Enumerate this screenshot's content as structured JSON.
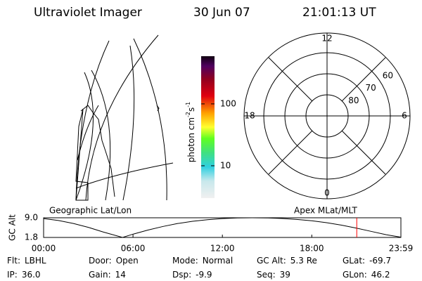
{
  "header": {
    "instrument": "Ultraviolet Imager",
    "date": "30 Jun 07",
    "time": "21:01:13 UT"
  },
  "colorbar": {
    "label": "photon cm",
    "exp1": "-2",
    "unit2": "s",
    "exp2": "-1",
    "log": true,
    "clim": [
      3,
      590
    ],
    "ticks": [
      10,
      100
    ]
  },
  "polar": {
    "lat_rings": [
      80,
      70,
      60
    ],
    "mlt_labels": [
      12,
      18,
      6,
      0
    ]
  },
  "chart_data": {
    "type": "line",
    "left_title": "Geographic Lat/Lon",
    "right_title": "Apex MLat/MLT",
    "ylabel": "GC Alt",
    "x": [
      0,
      1,
      2,
      3,
      4,
      5.3,
      6,
      7,
      8,
      9,
      10,
      11,
      12,
      13,
      14,
      15,
      16,
      17,
      18,
      19,
      20,
      21,
      22,
      23,
      23.983
    ],
    "series": [
      {
        "color": "#000000",
        "values": [
          8.7,
          8.0,
          6.9,
          5.5,
          3.8,
          1.8,
          3.0,
          4.5,
          5.8,
          6.9,
          7.7,
          8.3,
          8.7,
          8.95,
          9.0,
          8.95,
          8.75,
          8.4,
          7.9,
          7.2,
          6.3,
          5.2,
          4.0,
          2.8,
          1.9
        ]
      }
    ],
    "cursor_x": 21.02,
    "cursor_color": "#ff0000",
    "xlim": [
      0,
      23.983
    ],
    "xticks": [
      {
        "value": 0,
        "label": "00:00"
      },
      {
        "value": 6,
        "label": "06:00"
      },
      {
        "value": 12,
        "label": "12:00"
      },
      {
        "value": 18,
        "label": "18:00"
      },
      {
        "value": 23.983,
        "label": "23:59"
      }
    ],
    "ylim": [
      1.8,
      9.0
    ],
    "yticks": [
      {
        "value": 9.0,
        "label": "9.0"
      },
      {
        "value": 1.8,
        "label": "1.8"
      }
    ]
  },
  "footer": {
    "rows": [
      [
        {
          "label": "Flt:",
          "value": "LBHL"
        },
        {
          "label": "Door:",
          "value": "Open"
        },
        {
          "label": "Mode:",
          "value": "Normal"
        },
        {
          "label": "GC Alt:",
          "value": "5.3 Re"
        },
        {
          "label": "GLat:",
          "value": -69.7
        }
      ],
      [
        {
          "label": "IP:",
          "value": "36.0"
        },
        {
          "label": "Gain:",
          "value": 14
        },
        {
          "label": "Dsp:",
          "value": -9.9
        },
        {
          "label": "Seq:",
          "value": 39
        },
        {
          "label": "GLon:",
          "value": 46.2
        }
      ]
    ]
  }
}
